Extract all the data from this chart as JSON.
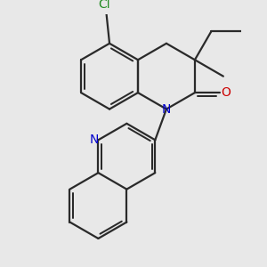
{
  "background_color": "#e8e8e8",
  "bond_color": "#2a2a2a",
  "N_color": "#0000cc",
  "O_color": "#cc0000",
  "Cl_color": "#228B22",
  "lw": 1.6,
  "dbo": 0.055,
  "figsize": [
    3.0,
    3.0
  ],
  "dpi": 100,
  "xlim": [
    -1.7,
    1.7
  ],
  "ylim": [
    -2.5,
    1.5
  ]
}
